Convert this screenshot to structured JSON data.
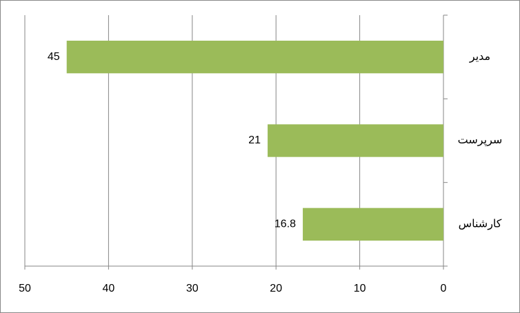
{
  "chart_data": {
    "type": "bar",
    "orientation": "horizontal",
    "categories": [
      "مدیر",
      "سرپرست",
      "کارشناس"
    ],
    "values": [
      45,
      21,
      16.8
    ],
    "color": "#9bbb59",
    "xlim": [
      0,
      50
    ],
    "xticks": [
      0,
      10,
      20,
      30,
      40,
      50
    ],
    "x_reversed": true,
    "grid": true
  }
}
